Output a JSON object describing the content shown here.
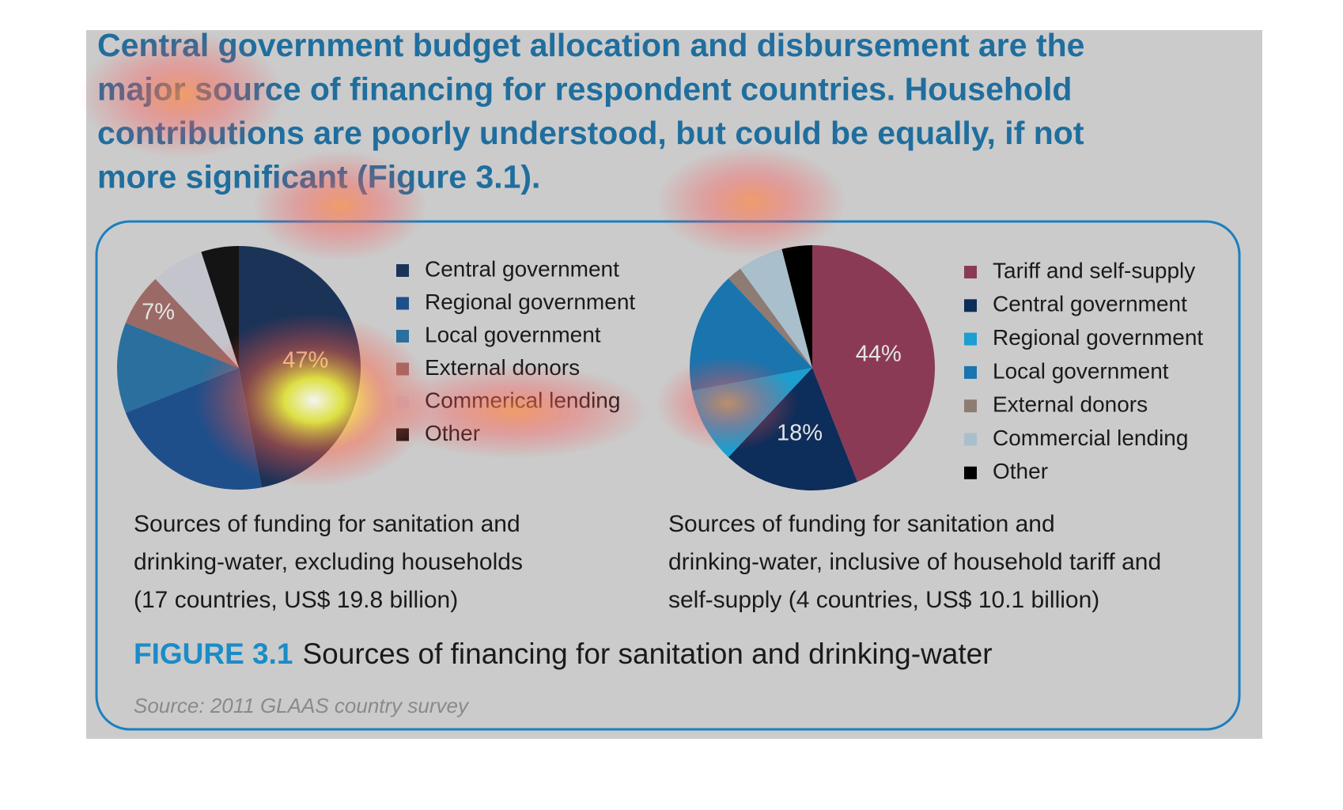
{
  "heading": [
    "Central government budget allocation and disbursement are the",
    "major source of financing for respondent countries. Household",
    "contributions are poorly understood, but could be equally, if not",
    "more significant (Figure 3.1)."
  ],
  "chart_data": [
    {
      "type": "pie",
      "categories": [
        "Central government",
        "Regional government",
        "Local government",
        "External donors",
        "Commerical lending",
        "Other"
      ],
      "values": [
        47,
        22,
        12,
        7,
        7,
        5
      ],
      "value_labels": [
        "47%",
        null,
        null,
        "7%",
        null,
        null
      ],
      "colors": [
        "#1c3358",
        "#1f4f8a",
        "#2a6f9e",
        "#9a6a66",
        "#c4c4cc",
        "#141414"
      ],
      "caption": [
        "Sources of funding for sanitation and",
        "drinking-water, excluding households",
        "(17 countries, US$ 19.8 billion)"
      ]
    },
    {
      "type": "pie",
      "categories": [
        "Tariff and self-supply",
        "Central government",
        "Regional government",
        "Local government",
        "External donors",
        "Commercial lending",
        "Other"
      ],
      "values": [
        44,
        18,
        10,
        16,
        2,
        6,
        4
      ],
      "value_labels": [
        "44%",
        "18%",
        null,
        null,
        null,
        null,
        null
      ],
      "colors": [
        "#8b3a56",
        "#0d2d5a",
        "#1a9fd0",
        "#1a74ad",
        "#8d7b74",
        "#a9bfcc",
        "#000000"
      ],
      "caption": [
        "Sources of funding for sanitation and",
        "drinking-water, inclusive of household tariff and",
        "self-supply (4 countries, US$ 10.1 billion)"
      ]
    }
  ],
  "figure": {
    "label": "FIGURE 3.1",
    "title": "Sources of financing for sanitation and drinking-water"
  },
  "source": "Source: 2011 GLAAS country survey"
}
